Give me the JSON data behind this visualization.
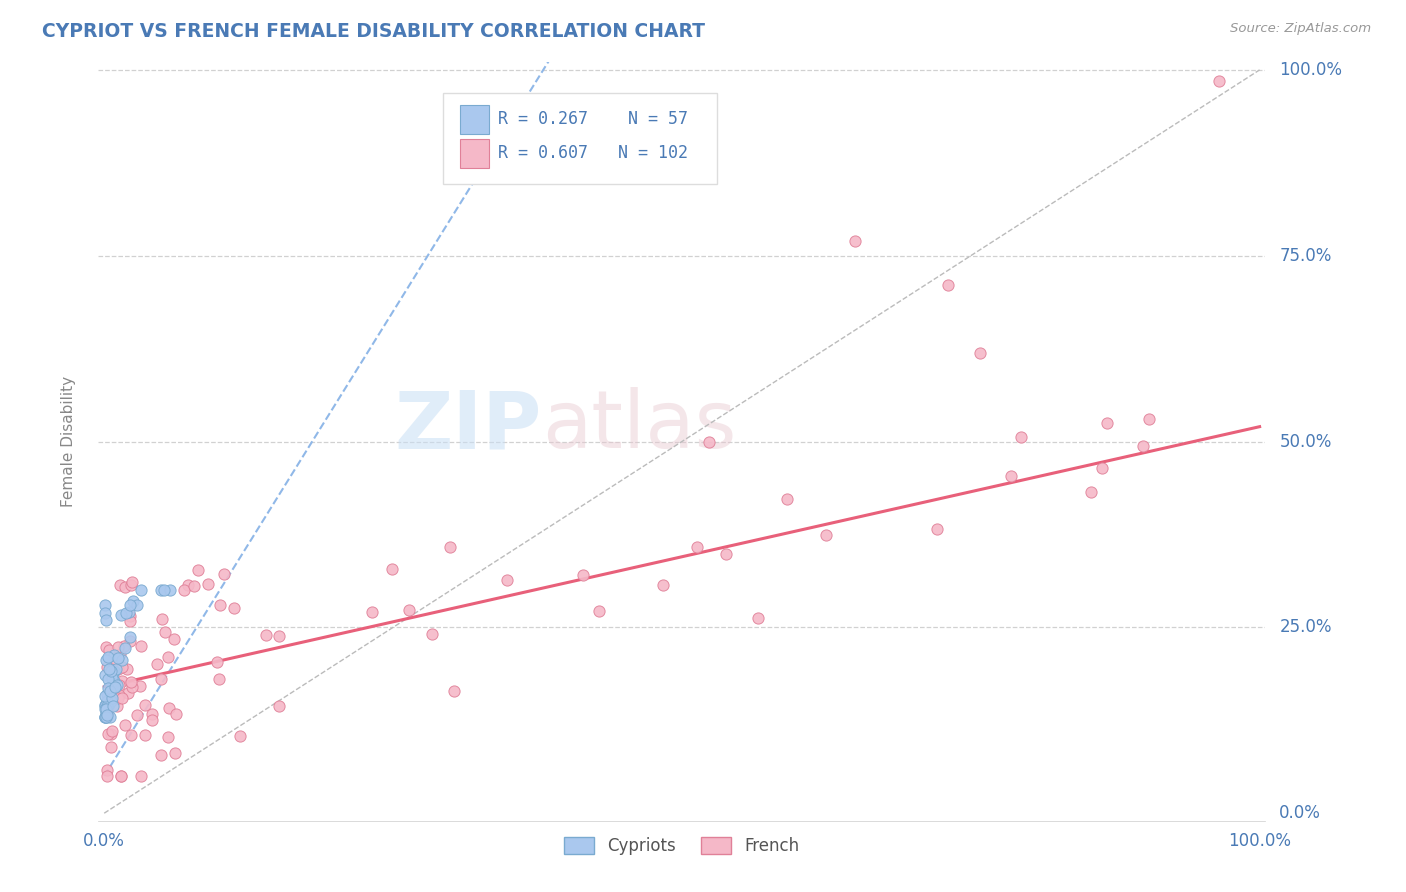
{
  "title": "CYPRIOT VS FRENCH FEMALE DISABILITY CORRELATION CHART",
  "source": "Source: ZipAtlas.com",
  "ylabel": "Female Disability",
  "legend_entries": [
    {
      "label": "Cypriots",
      "R": 0.267,
      "N": 57,
      "color": "#aac8ee",
      "edge": "#7aaad0"
    },
    {
      "label": "French",
      "R": 0.607,
      "N": 102,
      "color": "#f5b8c8",
      "edge": "#e08098"
    }
  ],
  "watermark_zip": "ZIP",
  "watermark_atlas": "atlas",
  "cypriot_color": "#aac8ee",
  "cypriot_edge": "#7aaad0",
  "french_color": "#f5b8c8",
  "french_edge": "#e08098",
  "cypriot_trend_color": "#90b8e8",
  "french_trend_color": "#e8607a",
  "diagonal_color": "#bbbbbb",
  "background": "#ffffff",
  "grid_color": "#cccccc",
  "title_color": "#4a7ab5",
  "source_color": "#999999",
  "axis_label_color": "#4a7ab5",
  "right_label_color": "#4a7ab5"
}
